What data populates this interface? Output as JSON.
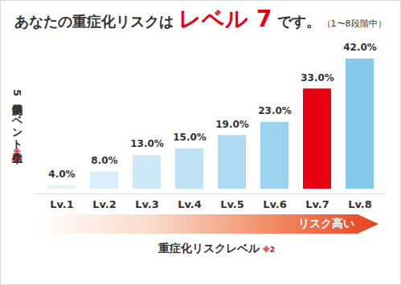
{
  "chart_data": {
    "type": "bar",
    "title": "あなたの重症化リスクは",
    "title_emphasis": "レベル 7",
    "title_end": "です。",
    "subtitle": "（1〜8段階中）",
    "y_label": "5年以内予測イベント発生率",
    "y_label_note": "※1",
    "x_label": "重症化リスクレベル",
    "x_label_note": "※2",
    "arrow_label": "リスク高い",
    "categories": [
      "Lv.1",
      "Lv.2",
      "Lv.3",
      "Lv.4",
      "Lv.5",
      "Lv.6",
      "Lv.7",
      "Lv.8"
    ],
    "values": [
      4.0,
      8.0,
      13.0,
      15.0,
      19.0,
      23.0,
      33.0,
      42.0
    ],
    "value_labels": [
      "4.0%",
      "8.0%",
      "13.0%",
      "15.0%",
      "19.0%",
      "23.0%",
      "33.0%",
      "42.0%"
    ],
    "colors": [
      "#e6f3fb",
      "#daeef9",
      "#cde8f7",
      "#bfe1f4",
      "#addaf2",
      "#9cd2ef",
      "#e60012",
      "#86c8ec"
    ],
    "ylim": [
      0,
      42
    ],
    "data_labels": true,
    "tick_labels": "x",
    "grid": false
  }
}
